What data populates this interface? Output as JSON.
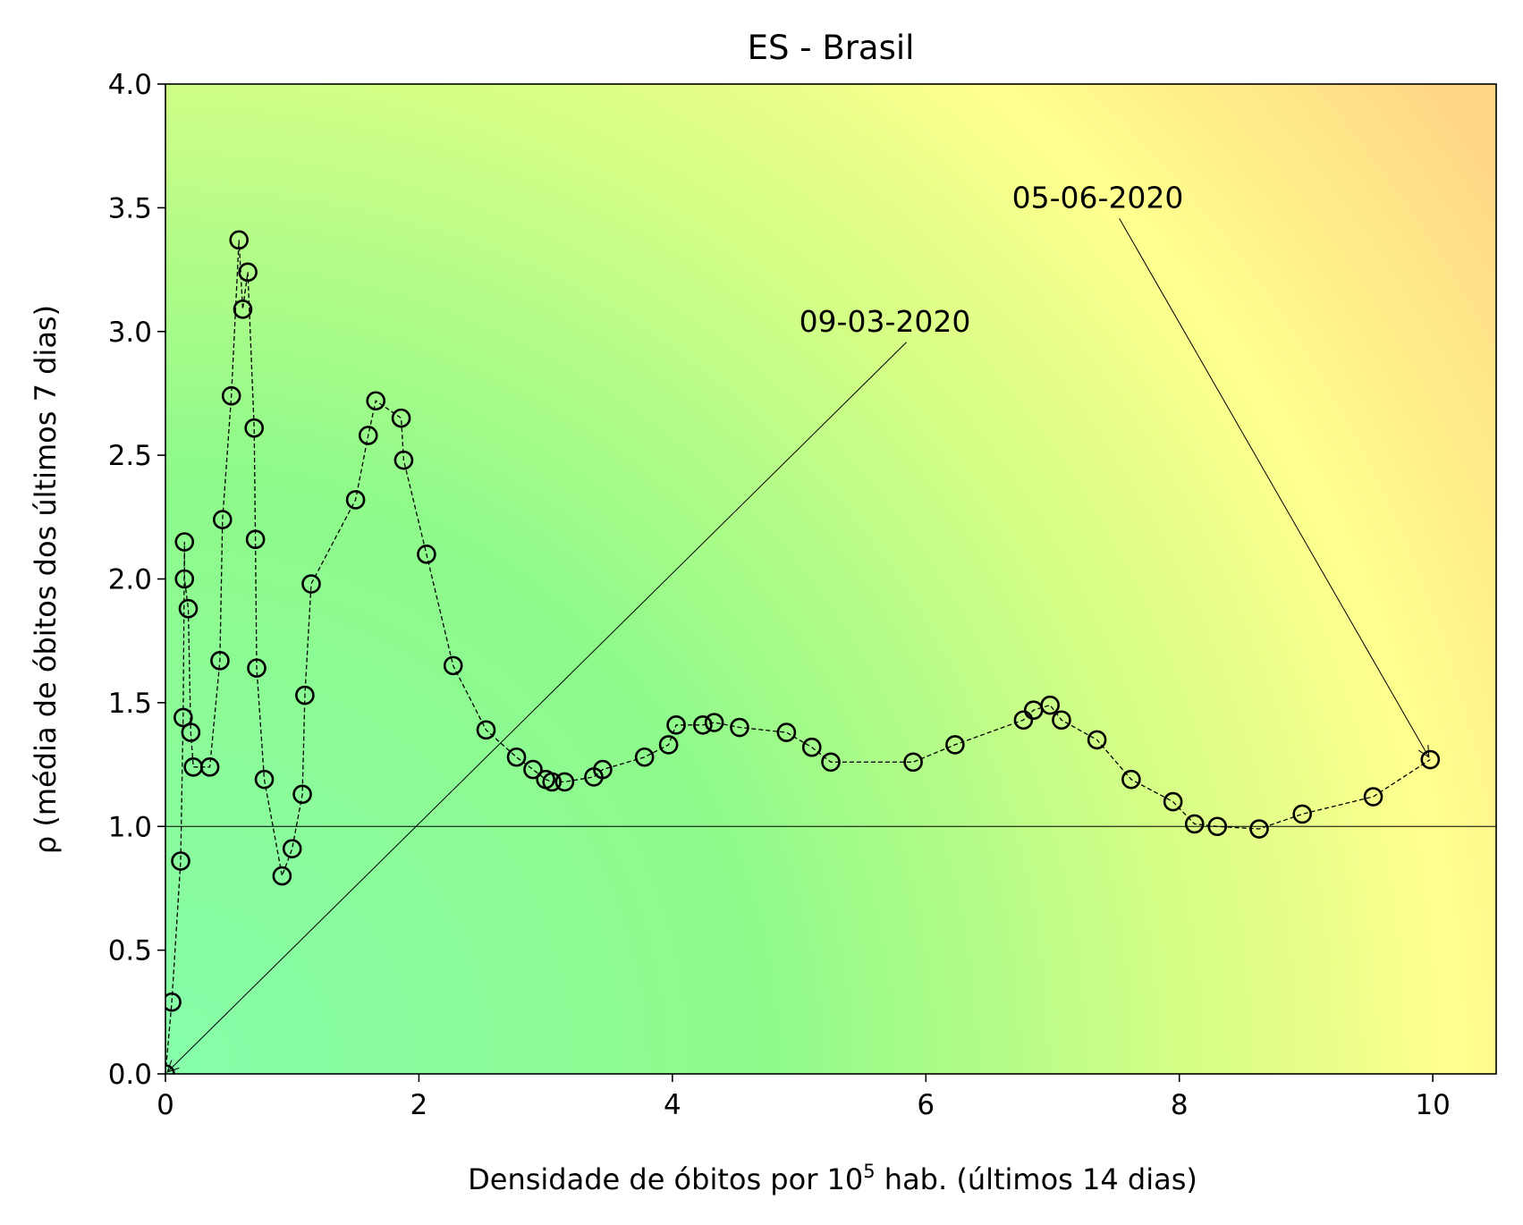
{
  "chart_data": {
    "type": "scatter",
    "title": "ES - Brasil",
    "xlabel_main": "Densidade de óbitos por 10",
    "xlabel_sup": "5",
    "xlabel_rest": " hab. (últimos 14 dias)",
    "ylabel": "ρ (média de óbitos dos últimos 7 dias)",
    "xlim": [
      0,
      10.5
    ],
    "ylim": [
      0,
      4.0
    ],
    "x_ticks": [
      0,
      2,
      4,
      6,
      8,
      10
    ],
    "x_tick_labels": [
      "0",
      "2",
      "4",
      "6",
      "8",
      "10"
    ],
    "y_ticks": [
      0,
      0.5,
      1.0,
      1.5,
      2.0,
      2.5,
      3.0,
      3.5,
      4.0
    ],
    "y_tick_labels": [
      "0.0",
      "0.5",
      "1.0",
      "1.5",
      "2.0",
      "2.5",
      "3.0",
      "3.5",
      "4.0"
    ],
    "reference_line_y": 1.0,
    "grid": false,
    "background": "gradient green-to-yellow-to-orange",
    "marker": "open-circle",
    "connector": "dashed",
    "annotations": [
      {
        "label": "09-03-2020",
        "point": [
          0.0,
          0.0
        ],
        "text_pos": [
          5.0,
          3.0
        ]
      },
      {
        "label": "05-06-2020",
        "point": [
          9.98,
          1.27
        ],
        "text_pos": [
          6.68,
          3.5
        ]
      }
    ],
    "points": [
      [
        0.0,
        0.0
      ],
      [
        0.05,
        0.29
      ],
      [
        0.12,
        0.86
      ],
      [
        0.14,
        1.44
      ],
      [
        0.15,
        2.15
      ],
      [
        0.15,
        2.0
      ],
      [
        0.18,
        1.88
      ],
      [
        0.2,
        1.38
      ],
      [
        0.22,
        1.24
      ],
      [
        0.35,
        1.24
      ],
      [
        0.43,
        1.67
      ],
      [
        0.45,
        2.24
      ],
      [
        0.52,
        2.74
      ],
      [
        0.58,
        3.37
      ],
      [
        0.61,
        3.09
      ],
      [
        0.65,
        3.24
      ],
      [
        0.7,
        2.61
      ],
      [
        0.71,
        2.16
      ],
      [
        0.72,
        1.64
      ],
      [
        0.78,
        1.19
      ],
      [
        0.92,
        0.8
      ],
      [
        1.0,
        0.91
      ],
      [
        1.08,
        1.13
      ],
      [
        1.1,
        1.53
      ],
      [
        1.15,
        1.98
      ],
      [
        1.5,
        2.32
      ],
      [
        1.6,
        2.58
      ],
      [
        1.66,
        2.72
      ],
      [
        1.86,
        2.65
      ],
      [
        1.88,
        2.48
      ],
      [
        2.06,
        2.1
      ],
      [
        2.27,
        1.65
      ],
      [
        2.53,
        1.39
      ],
      [
        2.77,
        1.28
      ],
      [
        2.9,
        1.23
      ],
      [
        3.0,
        1.19
      ],
      [
        3.05,
        1.18
      ],
      [
        3.15,
        1.18
      ],
      [
        3.38,
        1.2
      ],
      [
        3.45,
        1.23
      ],
      [
        3.78,
        1.28
      ],
      [
        3.97,
        1.33
      ],
      [
        4.03,
        1.41
      ],
      [
        4.24,
        1.41
      ],
      [
        4.33,
        1.42
      ],
      [
        4.53,
        1.4
      ],
      [
        4.9,
        1.38
      ],
      [
        5.1,
        1.32
      ],
      [
        5.25,
        1.26
      ],
      [
        5.9,
        1.26
      ],
      [
        6.23,
        1.33
      ],
      [
        6.77,
        1.43
      ],
      [
        6.85,
        1.47
      ],
      [
        6.98,
        1.49
      ],
      [
        7.07,
        1.43
      ],
      [
        7.35,
        1.35
      ],
      [
        7.62,
        1.19
      ],
      [
        7.95,
        1.1
      ],
      [
        8.12,
        1.01
      ],
      [
        8.3,
        1.0
      ],
      [
        8.63,
        0.99
      ],
      [
        8.97,
        1.05
      ],
      [
        9.53,
        1.12
      ],
      [
        9.98,
        1.27
      ]
    ]
  }
}
